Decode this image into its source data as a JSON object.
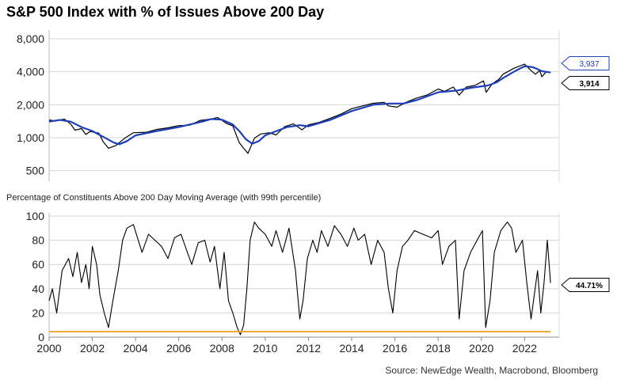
{
  "chart_data": [
    {
      "type": "line",
      "title": "S&P 500 Index with % of Issues Above 200 Day",
      "yscale": "log",
      "yticks": [
        500,
        1000,
        2000,
        4000,
        8000
      ],
      "ytick_labels": [
        "500",
        "1,000",
        "2,000",
        "4,000",
        "8,000"
      ],
      "xlim": [
        2000,
        2023.6
      ],
      "ylim": [
        400,
        8700
      ],
      "grid": true,
      "series": [
        {
          "color": "#000000",
          "last_label": "3,914",
          "x": [
            2000.0,
            2000.3,
            2000.7,
            2001.0,
            2001.2,
            2001.5,
            2001.7,
            2001.9,
            2002.3,
            2002.5,
            2002.75,
            2003.1,
            2003.5,
            2003.9,
            2004.5,
            2005.0,
            2005.5,
            2006.0,
            2006.5,
            2007.0,
            2007.5,
            2007.8,
            2008.2,
            2008.5,
            2008.8,
            2009.0,
            2009.2,
            2009.5,
            2009.8,
            2010.2,
            2010.5,
            2010.9,
            2011.3,
            2011.7,
            2012.0,
            2012.5,
            2013.0,
            2013.5,
            2014.0,
            2014.5,
            2015.0,
            2015.5,
            2015.7,
            2016.1,
            2016.5,
            2017.0,
            2017.5,
            2018.0,
            2018.3,
            2018.7,
            2018.97,
            2019.3,
            2019.7,
            2020.1,
            2020.22,
            2020.5,
            2020.8,
            2021.0,
            2021.5,
            2022.0,
            2022.3,
            2022.5,
            2022.7,
            2022.8,
            2023.0,
            2023.2
          ],
          "y": [
            1450,
            1420,
            1480,
            1330,
            1170,
            1210,
            1070,
            1140,
            1100,
            920,
            800,
            850,
            990,
            1110,
            1120,
            1190,
            1230,
            1290,
            1300,
            1440,
            1480,
            1530,
            1350,
            1280,
            900,
            800,
            720,
            990,
            1080,
            1110,
            1060,
            1260,
            1340,
            1180,
            1310,
            1380,
            1500,
            1640,
            1840,
            1950,
            2060,
            2100,
            1950,
            1900,
            2100,
            2300,
            2460,
            2780,
            2650,
            2900,
            2450,
            2900,
            3000,
            3300,
            2600,
            3100,
            3400,
            3800,
            4300,
            4700,
            4100,
            3800,
            4100,
            3600,
            4000,
            3914
          ]
        },
        {
          "color": "#1f3fb8",
          "last_label": "3,937",
          "x": [
            2000.0,
            2000.5,
            2001.0,
            2001.5,
            2002.0,
            2002.5,
            2003.0,
            2003.25,
            2003.6,
            2004.0,
            2005.0,
            2006.0,
            2007.0,
            2007.5,
            2008.0,
            2008.5,
            2008.8,
            2009.1,
            2009.4,
            2009.7,
            2010.0,
            2011.0,
            2011.6,
            2012.0,
            2013.0,
            2014.0,
            2015.0,
            2015.8,
            2016.4,
            2017.0,
            2018.0,
            2018.9,
            2019.5,
            2020.3,
            2020.7,
            2021.0,
            2021.5,
            2022.0,
            2022.4,
            2022.8,
            2023.2
          ],
          "y": [
            1400,
            1450,
            1400,
            1250,
            1150,
            1020,
            900,
            870,
            930,
            1050,
            1150,
            1250,
            1390,
            1480,
            1460,
            1320,
            1150,
            970,
            880,
            930,
            1050,
            1250,
            1300,
            1270,
            1450,
            1750,
            2000,
            2050,
            2050,
            2200,
            2600,
            2700,
            2850,
            3000,
            3200,
            3500,
            4000,
            4500,
            4400,
            4050,
            3937
          ]
        }
      ]
    },
    {
      "type": "line",
      "title": "Percentage of Constituents Above 200 Day Moving Average (with 99th percentile)",
      "xlim": [
        2000,
        2023.6
      ],
      "ylim": [
        0,
        100
      ],
      "yticks": [
        0,
        20,
        40,
        60,
        80,
        100
      ],
      "xticks": [
        2000,
        2002,
        2004,
        2006,
        2008,
        2010,
        2012,
        2014,
        2016,
        2018,
        2020,
        2022
      ],
      "grid": true,
      "series": [
        {
          "color": "#000000",
          "last_label": "44.71%",
          "x": [
            2000.0,
            2000.15,
            2000.35,
            2000.6,
            2000.9,
            2001.1,
            2001.3,
            2001.5,
            2001.7,
            2001.85,
            2002.0,
            2002.2,
            2002.35,
            2002.55,
            2002.75,
            2002.95,
            2003.2,
            2003.4,
            2003.6,
            2003.9,
            2004.3,
            2004.6,
            2004.9,
            2005.2,
            2005.5,
            2005.8,
            2006.1,
            2006.4,
            2006.6,
            2006.9,
            2007.2,
            2007.45,
            2007.65,
            2007.9,
            2008.1,
            2008.3,
            2008.5,
            2008.7,
            2008.85,
            2009.0,
            2009.15,
            2009.3,
            2009.5,
            2009.7,
            2010.0,
            2010.3,
            2010.5,
            2010.8,
            2011.1,
            2011.4,
            2011.6,
            2011.75,
            2011.95,
            2012.2,
            2012.4,
            2012.6,
            2012.9,
            2013.2,
            2013.5,
            2013.8,
            2014.1,
            2014.3,
            2014.6,
            2014.9,
            2015.2,
            2015.5,
            2015.7,
            2015.9,
            2016.1,
            2016.35,
            2016.6,
            2016.9,
            2017.3,
            2017.7,
            2018.0,
            2018.2,
            2018.5,
            2018.8,
            2018.97,
            2019.2,
            2019.5,
            2019.8,
            2020.05,
            2020.2,
            2020.4,
            2020.6,
            2020.9,
            2021.2,
            2021.4,
            2021.6,
            2021.9,
            2022.1,
            2022.3,
            2022.45,
            2022.6,
            2022.75,
            2022.9,
            2023.05,
            2023.2
          ],
          "y": [
            30,
            40,
            20,
            55,
            65,
            50,
            70,
            45,
            60,
            40,
            75,
            60,
            35,
            20,
            8,
            30,
            55,
            80,
            90,
            93,
            70,
            85,
            80,
            75,
            65,
            82,
            85,
            70,
            60,
            78,
            80,
            62,
            75,
            40,
            70,
            30,
            20,
            8,
            2,
            10,
            40,
            80,
            95,
            90,
            85,
            75,
            88,
            70,
            90,
            55,
            15,
            30,
            65,
            80,
            70,
            88,
            75,
            92,
            85,
            75,
            90,
            80,
            85,
            60,
            80,
            70,
            40,
            20,
            55,
            75,
            80,
            88,
            85,
            82,
            88,
            60,
            75,
            80,
            15,
            55,
            70,
            80,
            88,
            8,
            30,
            70,
            88,
            95,
            90,
            70,
            80,
            45,
            15,
            35,
            55,
            20,
            45,
            80,
            44.71
          ]
        },
        {
          "color": "#f0a531",
          "x": [
            2000.0,
            2023.2
          ],
          "y": [
            4.5,
            4.5
          ]
        }
      ]
    }
  ],
  "source": "Source: NewEdge Wealth, Macrobond, Bloomberg"
}
